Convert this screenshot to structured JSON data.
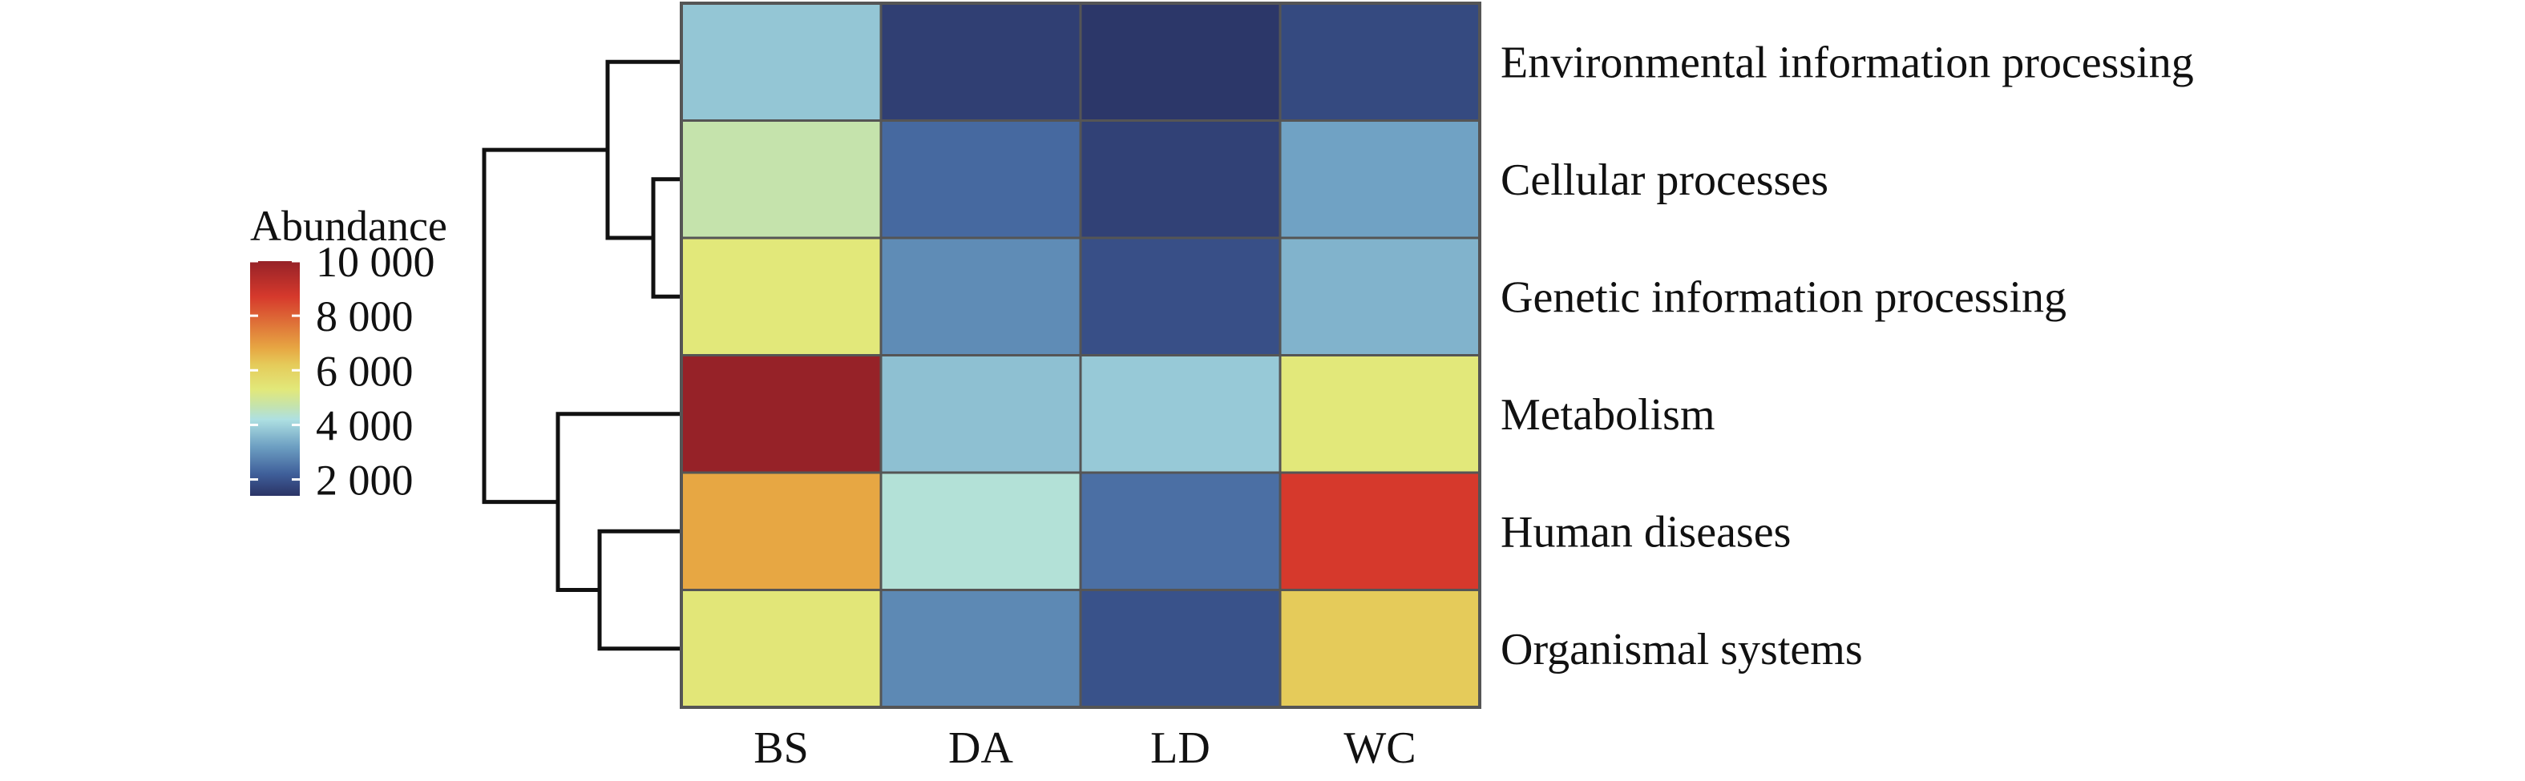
{
  "chart_data": {
    "type": "heatmap",
    "columns": [
      "BS",
      "DA",
      "LD",
      "WC"
    ],
    "rows": [
      "Environmental information processing",
      "Cellular processes",
      "Genetic information processing",
      "Metabolism",
      "Human diseases",
      "Organismal systems"
    ],
    "values": [
      [
        3800,
        1600,
        1450,
        1800
      ],
      [
        4700,
        2350,
        1650,
        3250
      ],
      [
        5300,
        2900,
        1900,
        3500
      ],
      [
        10000,
        3700,
        3850,
        5300
      ],
      [
        6800,
        4300,
        2450,
        8700
      ],
      [
        5350,
        2850,
        1950,
        6200
      ]
    ],
    "legend": {
      "title": "Abundance",
      "ticks": [
        {
          "value": 10000,
          "label": "10 000"
        },
        {
          "value": 8000,
          "label": "8 000"
        },
        {
          "value": 6000,
          "label": "6 000"
        },
        {
          "value": 4000,
          "label": "4 000"
        },
        {
          "value": 2000,
          "label": "2 000"
        }
      ],
      "range": [
        1400,
        10000
      ]
    },
    "color_stops": [
      {
        "value": 1400,
        "color": "#2b3466"
      },
      {
        "value": 2200,
        "color": "#3f5f9a"
      },
      {
        "value": 3200,
        "color": "#6d9fc2"
      },
      {
        "value": 4200,
        "color": "#aee0e2"
      },
      {
        "value": 4700,
        "color": "#c5e3ac"
      },
      {
        "value": 5300,
        "color": "#e2e87a"
      },
      {
        "value": 6200,
        "color": "#e5cb5a"
      },
      {
        "value": 6800,
        "color": "#e7a743"
      },
      {
        "value": 8700,
        "color": "#d6392c"
      },
      {
        "value": 10000,
        "color": "#962228"
      }
    ],
    "row_dendrogram": "((Environmental information processing,(Cellular processes,Genetic information processing)),(Metabolism,(Human diseases,Organismal systems)))"
  }
}
